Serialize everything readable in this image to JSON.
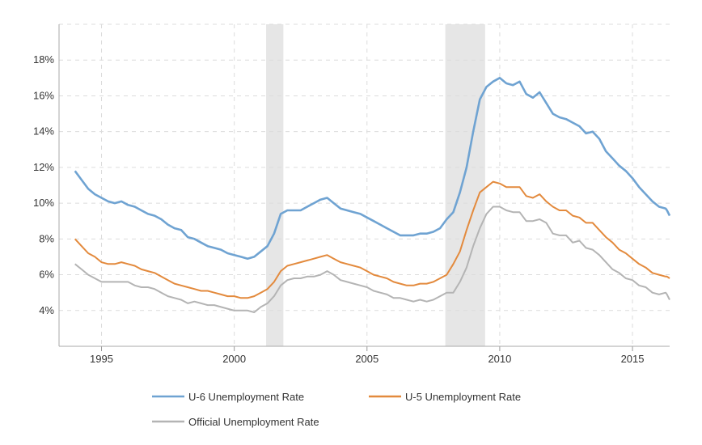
{
  "chart_data": {
    "type": "line",
    "title": "",
    "xlabel": "",
    "ylabel": "",
    "xlim": [
      1993.4,
      2016.4
    ],
    "ylim": [
      2,
      20
    ],
    "grid": true,
    "legend_position": "bottom",
    "x_ticks": [
      1995,
      2000,
      2005,
      2010,
      2015
    ],
    "x_tick_labels": [
      "1995",
      "2000",
      "2005",
      "2010",
      "2015"
    ],
    "y_ticks": [
      4,
      6,
      8,
      10,
      12,
      14,
      16,
      18
    ],
    "y_tick_labels": [
      "4%",
      "6%",
      "8%",
      "10%",
      "12%",
      "14%",
      "16%",
      "18%"
    ],
    "recessions": [
      {
        "start": 2001.2,
        "end": 2001.85
      },
      {
        "start": 2007.95,
        "end": 2009.45
      }
    ],
    "series": [
      {
        "name": "U-6 Unemployment Rate",
        "color": "#6fa3d2",
        "x": [
          1994.0,
          1994.25,
          1994.5,
          1994.75,
          1995.0,
          1995.25,
          1995.5,
          1995.75,
          1996.0,
          1996.25,
          1996.5,
          1996.75,
          1997.0,
          1997.25,
          1997.5,
          1997.75,
          1998.0,
          1998.25,
          1998.5,
          1998.75,
          1999.0,
          1999.25,
          1999.5,
          1999.75,
          2000.0,
          2000.25,
          2000.5,
          2000.75,
          2001.0,
          2001.25,
          2001.5,
          2001.75,
          2002.0,
          2002.25,
          2002.5,
          2002.75,
          2003.0,
          2003.25,
          2003.5,
          2003.75,
          2004.0,
          2004.25,
          2004.5,
          2004.75,
          2005.0,
          2005.25,
          2005.5,
          2005.75,
          2006.0,
          2006.25,
          2006.5,
          2006.75,
          2007.0,
          2007.25,
          2007.5,
          2007.75,
          2008.0,
          2008.25,
          2008.5,
          2008.75,
          2009.0,
          2009.25,
          2009.5,
          2009.75,
          2010.0,
          2010.25,
          2010.5,
          2010.75,
          2011.0,
          2011.25,
          2011.5,
          2011.75,
          2012.0,
          2012.25,
          2012.5,
          2012.75,
          2013.0,
          2013.25,
          2013.5,
          2013.75,
          2014.0,
          2014.25,
          2014.5,
          2014.75,
          2015.0,
          2015.25,
          2015.5,
          2015.75,
          2016.0,
          2016.25
        ],
        "y": [
          11.8,
          11.3,
          10.8,
          10.5,
          10.3,
          10.1,
          10.0,
          10.1,
          9.9,
          9.8,
          9.6,
          9.4,
          9.3,
          9.1,
          8.8,
          8.6,
          8.5,
          8.1,
          8.0,
          7.8,
          7.6,
          7.5,
          7.4,
          7.2,
          7.1,
          7.0,
          6.9,
          7.0,
          7.3,
          7.6,
          8.3,
          9.4,
          9.6,
          9.6,
          9.6,
          9.8,
          10.0,
          10.2,
          10.3,
          10.0,
          9.7,
          9.6,
          9.5,
          9.4,
          9.2,
          9.0,
          8.8,
          8.6,
          8.4,
          8.2,
          8.2,
          8.2,
          8.3,
          8.3,
          8.4,
          8.6,
          9.1,
          9.5,
          10.6,
          12.0,
          14.0,
          15.8,
          16.5,
          16.8,
          17.0,
          16.7,
          16.6,
          16.8,
          16.1,
          15.9,
          16.2,
          15.6,
          15.0,
          14.8,
          14.7,
          14.5,
          14.3,
          13.9,
          14.0,
          13.6,
          12.9,
          12.5,
          12.1,
          11.8,
          11.4,
          10.9,
          10.5,
          10.1,
          9.8,
          9.7
        ],
        "y_extra": [
          {
            "x": 2016.3,
            "y": 9.6
          },
          {
            "x": 2016.4,
            "y": 9.3
          }
        ]
      },
      {
        "name": "U-5 Unemployment Rate",
        "color": "#e38a3d",
        "x": [
          1994.0,
          1994.25,
          1994.5,
          1994.75,
          1995.0,
          1995.25,
          1995.5,
          1995.75,
          1996.0,
          1996.25,
          1996.5,
          1996.75,
          1997.0,
          1997.25,
          1997.5,
          1997.75,
          1998.0,
          1998.25,
          1998.5,
          1998.75,
          1999.0,
          1999.25,
          1999.5,
          1999.75,
          2000.0,
          2000.25,
          2000.5,
          2000.75,
          2001.0,
          2001.25,
          2001.5,
          2001.75,
          2002.0,
          2002.25,
          2002.5,
          2002.75,
          2003.0,
          2003.25,
          2003.5,
          2003.75,
          2004.0,
          2004.25,
          2004.5,
          2004.75,
          2005.0,
          2005.25,
          2005.5,
          2005.75,
          2006.0,
          2006.25,
          2006.5,
          2006.75,
          2007.0,
          2007.25,
          2007.5,
          2007.75,
          2008.0,
          2008.25,
          2008.5,
          2008.75,
          2009.0,
          2009.25,
          2009.5,
          2009.75,
          2010.0,
          2010.25,
          2010.5,
          2010.75,
          2011.0,
          2011.25,
          2011.5,
          2011.75,
          2012.0,
          2012.25,
          2012.5,
          2012.75,
          2013.0,
          2013.25,
          2013.5,
          2013.75,
          2014.0,
          2014.25,
          2014.5,
          2014.75,
          2015.0,
          2015.25,
          2015.5,
          2015.75,
          2016.0,
          2016.25
        ],
        "y": [
          8.0,
          7.6,
          7.2,
          7.0,
          6.7,
          6.6,
          6.6,
          6.7,
          6.6,
          6.5,
          6.3,
          6.2,
          6.1,
          5.9,
          5.7,
          5.5,
          5.4,
          5.3,
          5.2,
          5.1,
          5.1,
          5.0,
          4.9,
          4.8,
          4.8,
          4.7,
          4.7,
          4.8,
          5.0,
          5.2,
          5.6,
          6.2,
          6.5,
          6.6,
          6.7,
          6.8,
          6.9,
          7.0,
          7.1,
          6.9,
          6.7,
          6.6,
          6.5,
          6.4,
          6.2,
          6.0,
          5.9,
          5.8,
          5.6,
          5.5,
          5.4,
          5.4,
          5.5,
          5.5,
          5.6,
          5.8,
          6.0,
          6.6,
          7.3,
          8.5,
          9.6,
          10.6,
          10.9,
          11.2,
          11.1,
          10.9,
          10.9,
          10.9,
          10.4,
          10.3,
          10.5,
          10.1,
          9.8,
          9.6,
          9.6,
          9.3,
          9.2,
          8.9,
          8.9,
          8.5,
          8.1,
          7.8,
          7.4,
          7.2,
          6.9,
          6.6,
          6.4,
          6.1,
          6.0,
          5.9
        ],
        "y_extra": [
          {
            "x": 2016.3,
            "y": 5.9
          },
          {
            "x": 2016.4,
            "y": 5.8
          }
        ]
      },
      {
        "name": "Official Unemployment Rate",
        "color": "#b4b4b4",
        "x": [
          1994.0,
          1994.25,
          1994.5,
          1994.75,
          1995.0,
          1995.25,
          1995.5,
          1995.75,
          1996.0,
          1996.25,
          1996.5,
          1996.75,
          1997.0,
          1997.25,
          1997.5,
          1997.75,
          1998.0,
          1998.25,
          1998.5,
          1998.75,
          1999.0,
          1999.25,
          1999.5,
          1999.75,
          2000.0,
          2000.25,
          2000.5,
          2000.75,
          2001.0,
          2001.25,
          2001.5,
          2001.75,
          2002.0,
          2002.25,
          2002.5,
          2002.75,
          2003.0,
          2003.25,
          2003.5,
          2003.75,
          2004.0,
          2004.25,
          2004.5,
          2004.75,
          2005.0,
          2005.25,
          2005.5,
          2005.75,
          2006.0,
          2006.25,
          2006.5,
          2006.75,
          2007.0,
          2007.25,
          2007.5,
          2007.75,
          2008.0,
          2008.25,
          2008.5,
          2008.75,
          2009.0,
          2009.25,
          2009.5,
          2009.75,
          2010.0,
          2010.25,
          2010.5,
          2010.75,
          2011.0,
          2011.25,
          2011.5,
          2011.75,
          2012.0,
          2012.25,
          2012.5,
          2012.75,
          2013.0,
          2013.25,
          2013.5,
          2013.75,
          2014.0,
          2014.25,
          2014.5,
          2014.75,
          2015.0,
          2015.25,
          2015.5,
          2015.75,
          2016.0,
          2016.25
        ],
        "y": [
          6.6,
          6.3,
          6.0,
          5.8,
          5.6,
          5.6,
          5.6,
          5.6,
          5.6,
          5.4,
          5.3,
          5.3,
          5.2,
          5.0,
          4.8,
          4.7,
          4.6,
          4.4,
          4.5,
          4.4,
          4.3,
          4.3,
          4.2,
          4.1,
          4.0,
          4.0,
          4.0,
          3.9,
          4.2,
          4.4,
          4.8,
          5.4,
          5.7,
          5.8,
          5.8,
          5.9,
          5.9,
          6.0,
          6.2,
          6.0,
          5.7,
          5.6,
          5.5,
          5.4,
          5.3,
          5.1,
          5.0,
          4.9,
          4.7,
          4.7,
          4.6,
          4.5,
          4.6,
          4.5,
          4.6,
          4.8,
          5.0,
          5.0,
          5.6,
          6.4,
          7.6,
          8.6,
          9.4,
          9.8,
          9.8,
          9.6,
          9.5,
          9.5,
          9.0,
          9.0,
          9.1,
          8.9,
          8.3,
          8.2,
          8.2,
          7.8,
          7.9,
          7.5,
          7.4,
          7.1,
          6.7,
          6.3,
          6.1,
          5.8,
          5.7,
          5.4,
          5.3,
          5.0,
          4.9,
          5.0
        ],
        "y_extra": [
          {
            "x": 2016.3,
            "y": 4.9
          },
          {
            "x": 2016.4,
            "y": 4.6
          }
        ]
      }
    ]
  }
}
